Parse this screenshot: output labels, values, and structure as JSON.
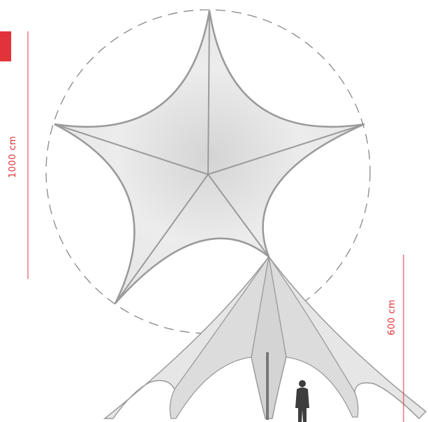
{
  "labels": {
    "top_view_diameter": "1000 cm",
    "side_view_height": "600 cm"
  }
}
